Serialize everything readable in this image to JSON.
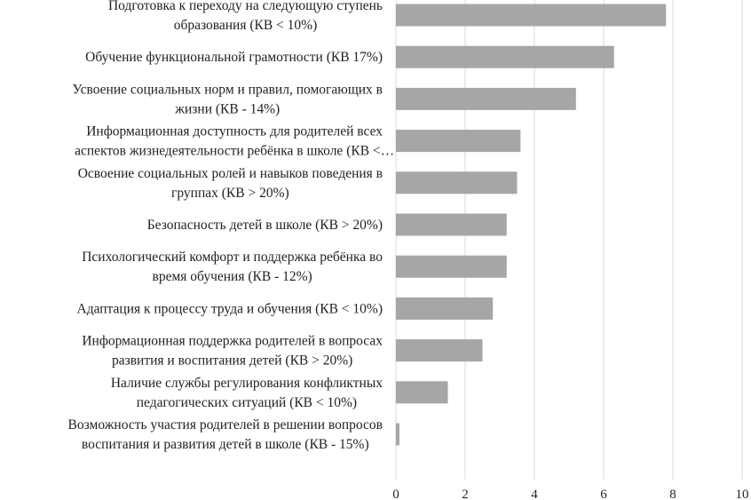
{
  "chart_data": {
    "type": "bar",
    "orientation": "horizontal",
    "categories": [
      [
        "Подготовка к переходу на следующую ступень",
        "образования (КВ < 10%)"
      ],
      [
        "Обучение функциональной грамотности (КВ 17%)"
      ],
      [
        "Усвоение социальных норм и правил, помогающих в",
        "жизни (КВ - 14%)"
      ],
      [
        "Информационная доступность для родителей всех",
        "аспектов жизнедеятельности ребёнка в школе (КВ <…"
      ],
      [
        "Освоение социальных ролей и навыков поведения в",
        "группах (КВ > 20%)"
      ],
      [
        "Безопасность детей в школе (КВ > 20%)"
      ],
      [
        "Психологический комфорт и поддержка ребёнка во",
        "время обучения (КВ - 12%)"
      ],
      [
        "Адаптация к процессу труда и обучения (КВ < 10%)"
      ],
      [
        "Информационная поддержка родителей в вопросах",
        "развития и воспитания детей (КВ > 20%)"
      ],
      [
        "Наличие службы регулирования конфликтных",
        "педагогических ситуаций (КВ < 10%)"
      ],
      [
        "Возможность участия родителей в решении вопросов",
        "воспитания и развития детей в школе (КВ - 15%)"
      ]
    ],
    "values": [
      7.8,
      6.3,
      5.2,
      3.6,
      3.5,
      3.2,
      3.2,
      2.8,
      2.5,
      1.5,
      0.1
    ],
    "xlim": [
      0,
      10
    ],
    "x_ticks": [
      0,
      2,
      4,
      6,
      8,
      10
    ],
    "grid": "vertical",
    "bar_color": "#a6a6a6",
    "grid_color": "#d9d9d9"
  }
}
